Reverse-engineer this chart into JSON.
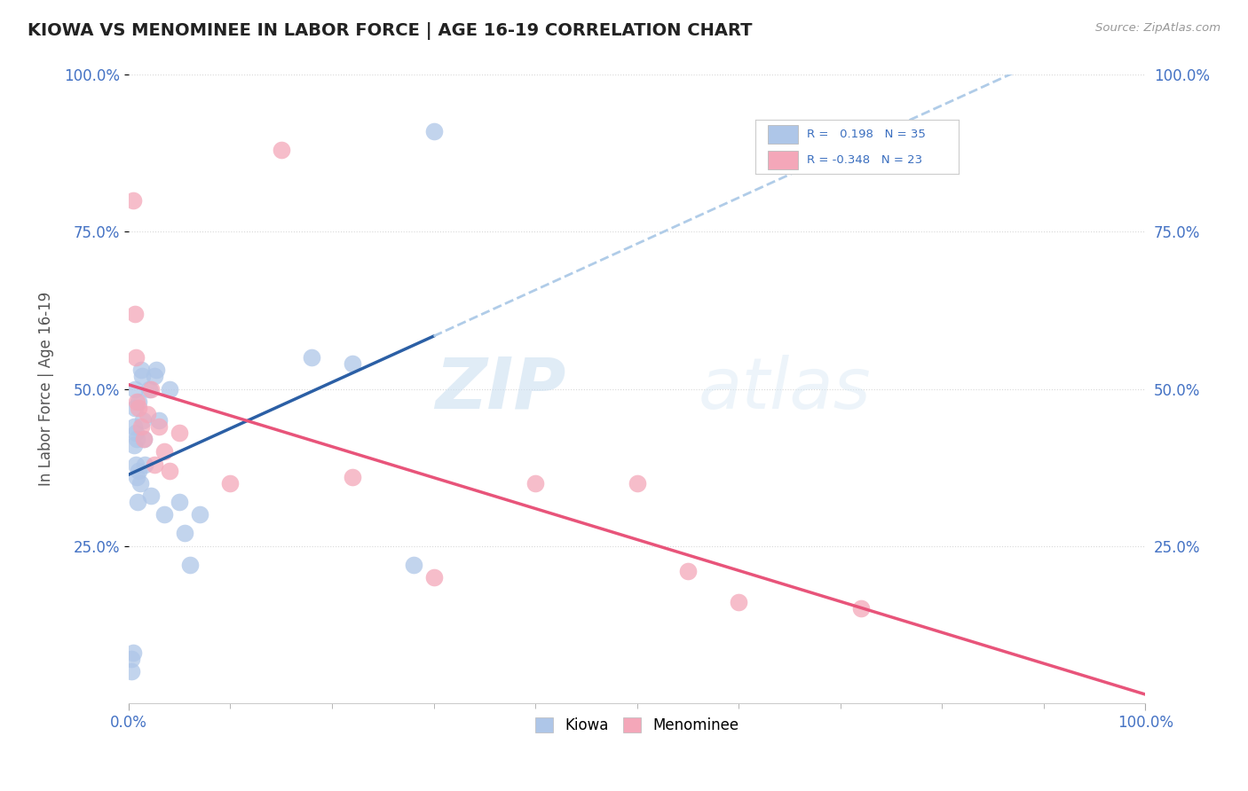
{
  "title": "KIOWA VS MENOMINEE IN LABOR FORCE | AGE 16-19 CORRELATION CHART",
  "source_text": "Source: ZipAtlas.com",
  "ylabel": "In Labor Force | Age 16-19",
  "xlim": [
    0,
    1.0
  ],
  "ylim": [
    0,
    1.0
  ],
  "kiowa_R": 0.198,
  "kiowa_N": 35,
  "menominee_R": -0.348,
  "menominee_N": 23,
  "kiowa_color": "#aec6e8",
  "kiowa_line_color": "#2b5fa5",
  "menominee_color": "#f4a7b9",
  "menominee_line_color": "#e8547a",
  "dashed_line_color": "#b0cce8",
  "background_color": "#ffffff",
  "grid_color": "#d8d8d8",
  "watermark_zip": "ZIP",
  "watermark_atlas": "atlas",
  "kiowa_x": [
    0.003,
    0.003,
    0.004,
    0.005,
    0.005,
    0.006,
    0.006,
    0.007,
    0.007,
    0.008,
    0.008,
    0.009,
    0.01,
    0.01,
    0.011,
    0.012,
    0.013,
    0.014,
    0.015,
    0.016,
    0.02,
    0.022,
    0.025,
    0.027,
    0.03,
    0.035,
    0.04,
    0.05,
    0.055,
    0.06,
    0.07,
    0.18,
    0.22,
    0.28,
    0.3
  ],
  "kiowa_y": [
    0.07,
    0.05,
    0.08,
    0.44,
    0.41,
    0.5,
    0.47,
    0.43,
    0.38,
    0.42,
    0.36,
    0.32,
    0.48,
    0.37,
    0.35,
    0.53,
    0.52,
    0.45,
    0.42,
    0.38,
    0.5,
    0.33,
    0.52,
    0.53,
    0.45,
    0.3,
    0.5,
    0.32,
    0.27,
    0.22,
    0.3,
    0.55,
    0.54,
    0.22,
    0.91
  ],
  "menominee_x": [
    0.004,
    0.006,
    0.007,
    0.008,
    0.01,
    0.012,
    0.015,
    0.018,
    0.022,
    0.025,
    0.03,
    0.035,
    0.04,
    0.05,
    0.1,
    0.15,
    0.22,
    0.3,
    0.4,
    0.5,
    0.55,
    0.6,
    0.72
  ],
  "menominee_y": [
    0.8,
    0.62,
    0.55,
    0.48,
    0.47,
    0.44,
    0.42,
    0.46,
    0.5,
    0.38,
    0.44,
    0.4,
    0.37,
    0.43,
    0.35,
    0.88,
    0.36,
    0.2,
    0.35,
    0.35,
    0.21,
    0.16,
    0.15
  ]
}
